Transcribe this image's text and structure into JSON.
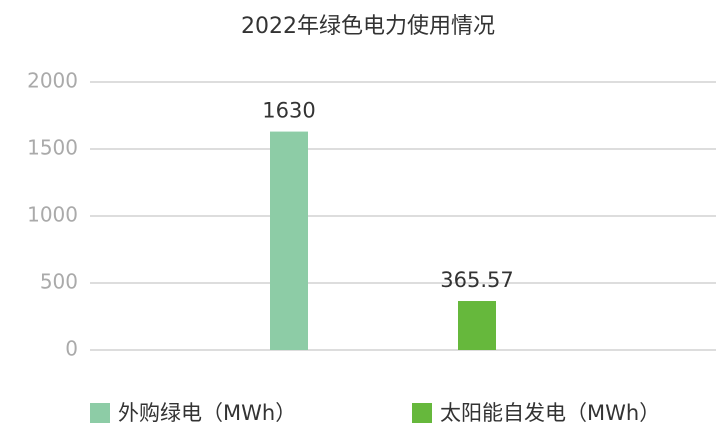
{
  "chart_data": {
    "type": "bar",
    "title": "2022年绿色电力使用情况",
    "categories": [
      null
    ],
    "series": [
      {
        "name": "外购绿电（MWh）",
        "color": "#8dcca6",
        "values": [
          1630
        ]
      },
      {
        "name": "太阳能自发电（MWh）",
        "color": "#66b83c",
        "values": [
          365.57
        ]
      }
    ],
    "ylim": [
      0,
      2000
    ],
    "yticks": [
      0,
      500,
      1000,
      1500,
      2000
    ],
    "grid": true,
    "legend": "bottom"
  }
}
